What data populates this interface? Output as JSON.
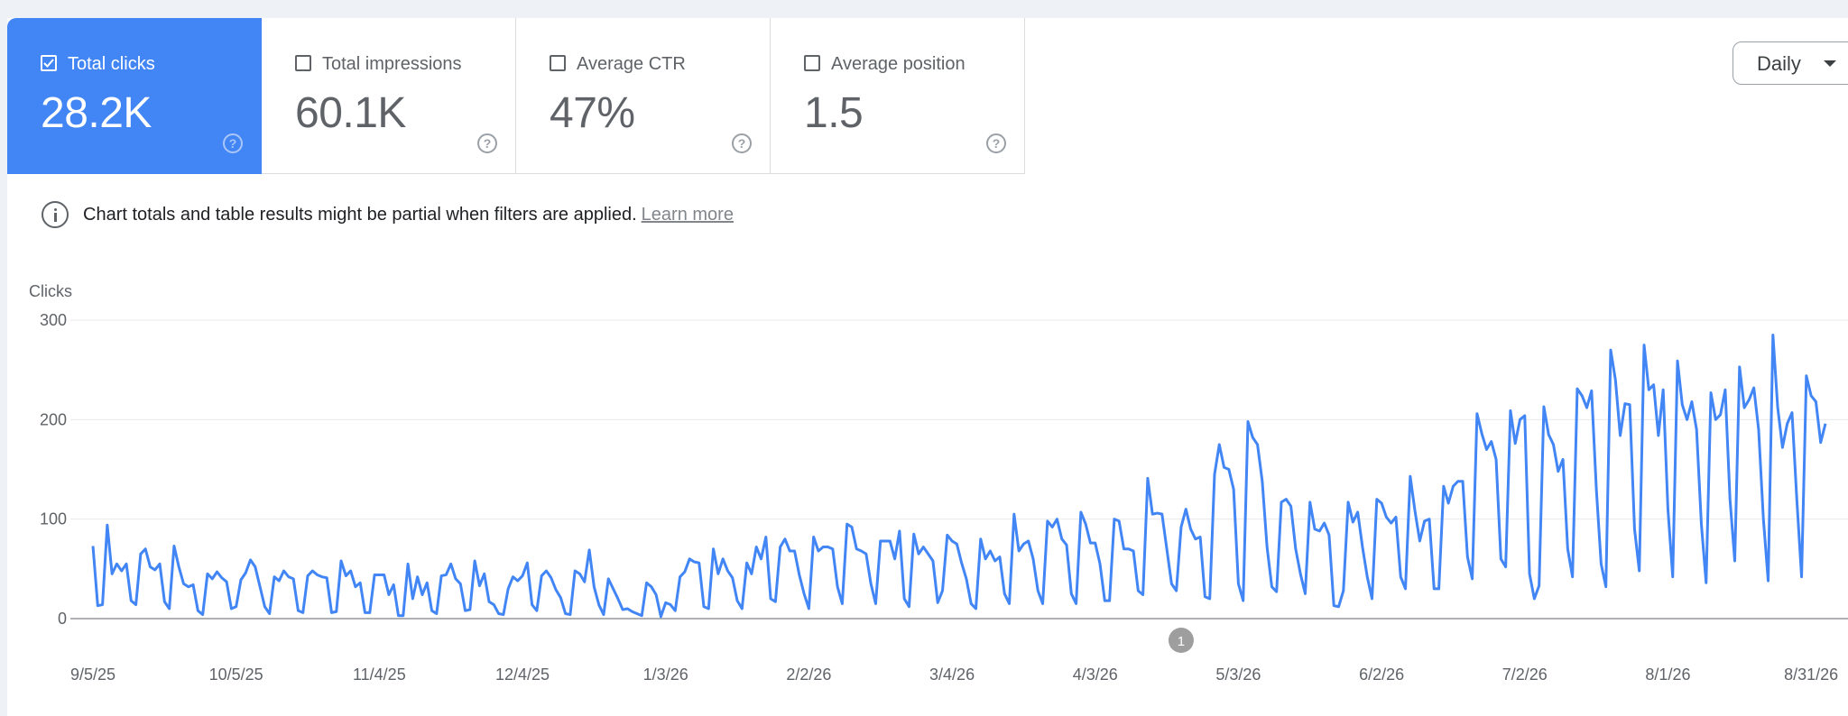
{
  "metrics": [
    {
      "label": "Total clicks",
      "value": "28.2K",
      "checked": true
    },
    {
      "label": "Total impressions",
      "value": "60.1K",
      "checked": false
    },
    {
      "label": "Average CTR",
      "value": "47%",
      "checked": false
    },
    {
      "label": "Average position",
      "value": "1.5",
      "checked": false
    }
  ],
  "granularity": {
    "selected": "Daily"
  },
  "notice": {
    "text": "Chart totals and table results might be partial when filters are applied.",
    "link": "Learn more"
  },
  "colors": {
    "accent": "#4285f4",
    "series": "#4285f4",
    "annotation": "#9e9e9e"
  },
  "chart_data": {
    "type": "line",
    "ylabel": "Clicks",
    "ylim": [
      0,
      300
    ],
    "yticks": [
      0,
      100,
      200,
      300
    ],
    "xlim": [
      "2025-09-05",
      "2026-09-03"
    ],
    "xticks": [
      "9/5/25",
      "10/5/25",
      "11/4/25",
      "12/4/25",
      "1/3/26",
      "2/2/26",
      "3/4/26",
      "4/3/26",
      "5/3/26",
      "6/2/26",
      "7/2/26",
      "8/1/26",
      "8/31/26"
    ],
    "annotations": [
      {
        "label": "1",
        "date": "2026-04-21"
      }
    ],
    "series": [
      {
        "start_date": "2025-09-05",
        "interval": "daily",
        "values": [
          73,
          13,
          14,
          94,
          45,
          55,
          48,
          55,
          18,
          14,
          65,
          70,
          52,
          49,
          55,
          17,
          10,
          73,
          52,
          35,
          32,
          34,
          8,
          4,
          45,
          40,
          47,
          41,
          37,
          10,
          12,
          39,
          46,
          59,
          52,
          32,
          12,
          5,
          42,
          38,
          48,
          42,
          40,
          8,
          6,
          43,
          48,
          44,
          42,
          41,
          6,
          7,
          58,
          43,
          48,
          32,
          36,
          6,
          6,
          44,
          44,
          44,
          24,
          34,
          3,
          3,
          55,
          20,
          42,
          24,
          36,
          8,
          5,
          43,
          44,
          55,
          40,
          35,
          8,
          9,
          58,
          33,
          45,
          17,
          14,
          5,
          4,
          30,
          42,
          38,
          43,
          56,
          14,
          8,
          43,
          48,
          41,
          29,
          21,
          5,
          4,
          48,
          45,
          37,
          69,
          32,
          14,
          4,
          40,
          30,
          20,
          9,
          10,
          7,
          5,
          3,
          36,
          32,
          24,
          2,
          16,
          14,
          8,
          42,
          47,
          60,
          57,
          56,
          12,
          10,
          70,
          45,
          60,
          48,
          41,
          18,
          10,
          56,
          45,
          72,
          60,
          82,
          20,
          17,
          72,
          80,
          68,
          68,
          44,
          25,
          10,
          82,
          68,
          72,
          72,
          70,
          32,
          15,
          95,
          92,
          70,
          68,
          65,
          35,
          15,
          78,
          78,
          78,
          60,
          88,
          20,
          12,
          85,
          65,
          72,
          65,
          58,
          16,
          28,
          84,
          78,
          75,
          56,
          40,
          15,
          10,
          80,
          60,
          68,
          58,
          62,
          25,
          15,
          105,
          68,
          75,
          78,
          60,
          28,
          15,
          98,
          92,
          100,
          80,
          74,
          25,
          15,
          107,
          95,
          76,
          76,
          55,
          18,
          18,
          100,
          98,
          70,
          70,
          68,
          28,
          24,
          141,
          105,
          106,
          105,
          70,
          35,
          28,
          92,
          110,
          90,
          80,
          82,
          22,
          20,
          145,
          175,
          152,
          150,
          130,
          35,
          18,
          198,
          182,
          175,
          138,
          72,
          32,
          27,
          117,
          120,
          113,
          70,
          45,
          25,
          117,
          90,
          88,
          96,
          84,
          13,
          12,
          28,
          117,
          97,
          107,
          72,
          42,
          20,
          120,
          116,
          102,
          96,
          102,
          42,
          30,
          143,
          108,
          78,
          98,
          100,
          30,
          30,
          133,
          116,
          133,
          138,
          138,
          62,
          40,
          206,
          186,
          170,
          178,
          160,
          60,
          52,
          209,
          176,
          200,
          204,
          45,
          20,
          33,
          213,
          185,
          175,
          148,
          160,
          70,
          42,
          231,
          224,
          212,
          229,
          130,
          55,
          32,
          270,
          240,
          184,
          216,
          215,
          90,
          48,
          275,
          230,
          235,
          184,
          230,
          110,
          42,
          259,
          215,
          200,
          218,
          190,
          95,
          36,
          227,
          200,
          205,
          230,
          120,
          58,
          253,
          212,
          220,
          232,
          190,
          100,
          38,
          285,
          212,
          172,
          196,
          207,
          120,
          42,
          244,
          224,
          218,
          177,
          196
        ]
      }
    ]
  }
}
